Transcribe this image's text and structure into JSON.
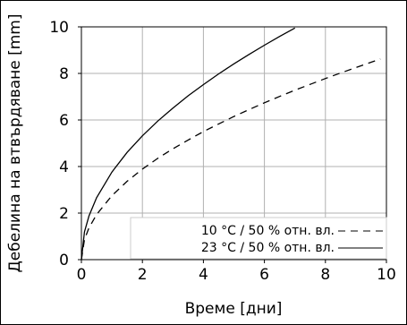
{
  "chart_data": {
    "type": "line",
    "xlabel": "Време [дни]",
    "ylabel": "Дебелина на втвърдяване [mm]",
    "xlim": [
      0,
      10
    ],
    "ylim": [
      0,
      10
    ],
    "xticks": [
      "0",
      "2",
      "4",
      "6",
      "8",
      "10"
    ],
    "yticks": [
      "0",
      "2",
      "4",
      "6",
      "8",
      "10"
    ],
    "grid": true,
    "legend_position": "bottom-right",
    "series": [
      {
        "name": "10 °C / 50 % отн. вл.",
        "style": "dashed",
        "color": "#000000",
        "x": [
          0,
          0.1,
          0.25,
          0.5,
          1,
          1.5,
          2,
          2.5,
          3,
          3.5,
          4,
          4.5,
          5,
          5.5,
          6,
          6.5,
          7,
          7.5,
          8,
          8.5,
          9,
          9.5,
          9.8
        ],
        "y": [
          0,
          0.86,
          1.37,
          1.94,
          2.75,
          3.37,
          3.89,
          4.35,
          4.76,
          5.14,
          5.5,
          5.83,
          6.15,
          6.45,
          6.74,
          7.01,
          7.28,
          7.53,
          7.78,
          8.02,
          8.25,
          8.48,
          8.62
        ]
      },
      {
        "name": "23 °C / 50 % отн. вл.",
        "style": "solid",
        "color": "#000000",
        "x": [
          0,
          0.1,
          0.25,
          0.5,
          1,
          1.5,
          2,
          2.5,
          3,
          3.5,
          4,
          4.5,
          5,
          5.5,
          6,
          6.5,
          7
        ],
        "y": [
          0,
          1.19,
          1.88,
          2.66,
          3.76,
          4.61,
          5.32,
          5.95,
          6.51,
          7.04,
          7.52,
          7.98,
          8.41,
          8.82,
          9.21,
          9.59,
          9.95
        ]
      }
    ]
  }
}
